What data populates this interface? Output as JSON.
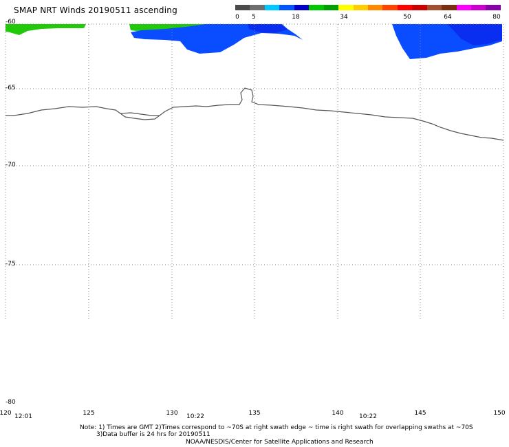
{
  "title": "SMAP NRT Winds 20190511 ascending",
  "colorbar": {
    "ticks": [
      "0",
      "5",
      "18",
      "34",
      "50",
      "64",
      "80"
    ],
    "colors": [
      "#4a4a4a",
      "#6e6e6e",
      "#00c8ff",
      "#0055ff",
      "#0000c8",
      "#00c800",
      "#00a000",
      "#ffff00",
      "#ffcc00",
      "#ff8800",
      "#ff4400",
      "#ff0000",
      "#cc0000",
      "#a05030",
      "#7a3010",
      "#ff00ff",
      "#cc00cc",
      "#8800aa"
    ]
  },
  "map": {
    "lat_labels": [
      "-60",
      "-65",
      "-70",
      "-75",
      "-80"
    ],
    "lon_labels": [
      "120",
      "125",
      "130",
      "135",
      "140",
      "145",
      "150"
    ],
    "time_labels": [
      "12:01",
      "10:22",
      "10:22"
    ],
    "colors": {
      "wind_green": "#22c80a",
      "wind_blue": "#0a4cff",
      "wind_blue_dark": "#0a2ef0",
      "coast": "#555555",
      "grid": "#888888"
    }
  },
  "notes": {
    "line1": "Note: 1) Times are GMT 2)Times correspond to ~70S at right swath edge ~ time is right swath for overlapping swaths at ~70S",
    "line2": "3)Data buffer is 24 hrs for 20190511",
    "line3": "NOAA/NESDIS/Center for Satellite Applications and Research"
  }
}
